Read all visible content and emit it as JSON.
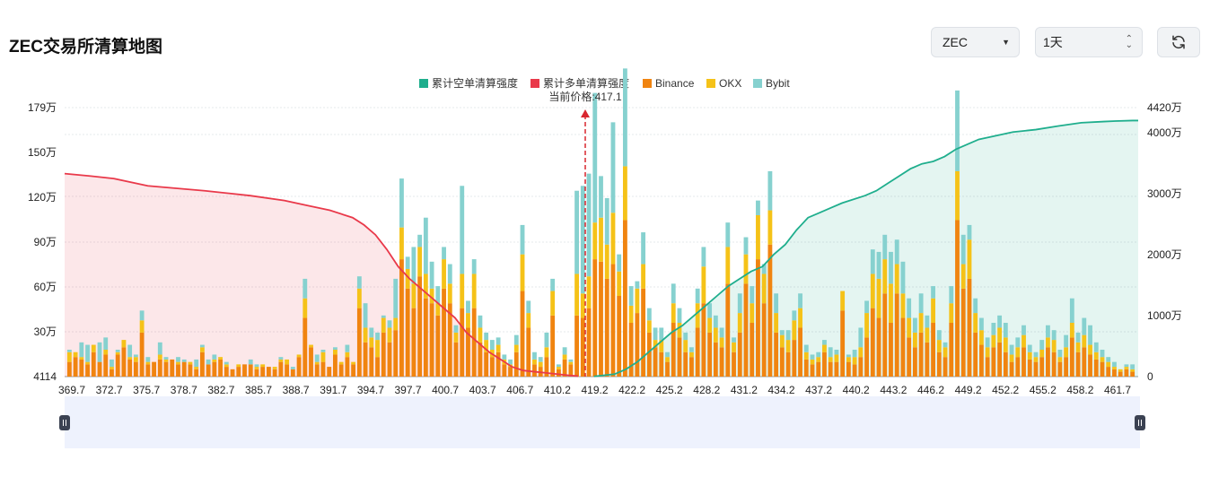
{
  "header": {
    "title": "ZEC交易所清算地图",
    "coin_select": "ZEC",
    "range_select": "1天"
  },
  "colors": {
    "short_cum": "#1fae8d",
    "long_cum": "#e9394a",
    "binance": "#f08410",
    "okx": "#f5c218",
    "bybit": "#86d1cf"
  },
  "chart_data": {
    "type": "bar",
    "legend": [
      "累计空单清算强度",
      "累计多单清算强度",
      "Binance",
      "OKX",
      "Bybit"
    ],
    "current_price_label": "当前价格:417.1",
    "current_price": 417.1,
    "x_range": [
      369.7,
      464.0
    ],
    "x_ticks": [
      "369.7",
      "372.7",
      "375.7",
      "378.7",
      "382.7",
      "385.7",
      "388.7",
      "391.7",
      "394.7",
      "397.7",
      "400.7",
      "403.7",
      "406.7",
      "410.2",
      "419.2",
      "422.2",
      "425.2",
      "428.2",
      "431.2",
      "434.2",
      "437.2",
      "440.2",
      "443.2",
      "446.2",
      "449.2",
      "452.2",
      "455.2",
      "458.2",
      "461.7"
    ],
    "left_axis": {
      "ticks": [
        "179万",
        "150万",
        "120万",
        "90万",
        "60万",
        "30万",
        "4114"
      ],
      "ylim": [
        4114,
        1790000
      ]
    },
    "right_axis": {
      "ticks": [
        "4420万",
        "4000万",
        "3000万",
        "2000万",
        "1000万",
        "0"
      ],
      "ylim": [
        0,
        44200000
      ]
    },
    "bars": [
      [
        6,
        4,
        1
      ],
      [
        8,
        2,
        0
      ],
      [
        7,
        1,
        6
      ],
      [
        5,
        1,
        7
      ],
      [
        10,
        3,
        0
      ],
      [
        6,
        0,
        8
      ],
      [
        9,
        2,
        5
      ],
      [
        3,
        1,
        3
      ],
      [
        9,
        1,
        1
      ],
      [
        12,
        3,
        0
      ],
      [
        7,
        1,
        5
      ],
      [
        6,
        2,
        1
      ],
      [
        18,
        5,
        4
      ],
      [
        5,
        1,
        2
      ],
      [
        6,
        0,
        0
      ],
      [
        7,
        2,
        5
      ],
      [
        6,
        1,
        1
      ],
      [
        7,
        0,
        0
      ],
      [
        5,
        1,
        2
      ],
      [
        6,
        0,
        1
      ],
      [
        5,
        1,
        0
      ],
      [
        3,
        1,
        3
      ],
      [
        10,
        2,
        1
      ],
      [
        5,
        0,
        2
      ],
      [
        6,
        1,
        2
      ],
      [
        7,
        1,
        0
      ],
      [
        4,
        1,
        1
      ],
      [
        3,
        0,
        0
      ],
      [
        4,
        1,
        0
      ],
      [
        5,
        0,
        0
      ],
      [
        5,
        0,
        2
      ],
      [
        3,
        1,
        1
      ],
      [
        4,
        1,
        0
      ],
      [
        4,
        0,
        0
      ],
      [
        3,
        1,
        0
      ],
      [
        6,
        1,
        1
      ],
      [
        5,
        2,
        0
      ],
      [
        3,
        0,
        1
      ],
      [
        8,
        1,
        0
      ],
      [
        24,
        8,
        8
      ],
      [
        12,
        1,
        0
      ],
      [
        5,
        1,
        3
      ],
      [
        6,
        4,
        1
      ],
      [
        4,
        0,
        0
      ],
      [
        9,
        2,
        1
      ],
      [
        5,
        1,
        0
      ],
      [
        8,
        2,
        3
      ],
      [
        5,
        1,
        0
      ],
      [
        28,
        8,
        5
      ],
      [
        14,
        6,
        10
      ],
      [
        12,
        4,
        4
      ],
      [
        8,
        7,
        3
      ],
      [
        18,
        6,
        1
      ],
      [
        14,
        6,
        3
      ],
      [
        19,
        5,
        16
      ],
      [
        48,
        13,
        20
      ],
      [
        36,
        8,
        5
      ],
      [
        28,
        10,
        15
      ],
      [
        41,
        12,
        5
      ],
      [
        32,
        10,
        23
      ],
      [
        30,
        6,
        11
      ],
      [
        25,
        5,
        7
      ],
      [
        36,
        12,
        5
      ],
      [
        30,
        8,
        8
      ],
      [
        14,
        4,
        3
      ],
      [
        28,
        14,
        36
      ],
      [
        20,
        6,
        5
      ],
      [
        28,
        14,
        6
      ],
      [
        14,
        6,
        5
      ],
      [
        10,
        5,
        3
      ],
      [
        8,
        3,
        4
      ],
      [
        10,
        3,
        3
      ],
      [
        5,
        2,
        2
      ],
      [
        4,
        1,
        2
      ],
      [
        10,
        3,
        4
      ],
      [
        35,
        15,
        12
      ],
      [
        20,
        6,
        5
      ],
      [
        5,
        2,
        3
      ],
      [
        4,
        2,
        2
      ],
      [
        8,
        4,
        6
      ],
      [
        25,
        10,
        5
      ],
      [
        3,
        1,
        1
      ],
      [
        7,
        2,
        3
      ],
      [
        5,
        1,
        1
      ],
      [
        25,
        17,
        34
      ],
      [
        24,
        10,
        44
      ],
      [
        28,
        13,
        42
      ],
      [
        48,
        15,
        53
      ],
      [
        47,
        18,
        17
      ],
      [
        40,
        14,
        19
      ],
      [
        46,
        21,
        37
      ],
      [
        33,
        10,
        7
      ],
      [
        64,
        22,
        40
      ],
      [
        22,
        7,
        8
      ],
      [
        26,
        10,
        3
      ],
      [
        36,
        10,
        13
      ],
      [
        18,
        5,
        5
      ],
      [
        12,
        3,
        5
      ],
      [
        10,
        5,
        5
      ],
      [
        6,
        2,
        2
      ],
      [
        22,
        8,
        8
      ],
      [
        16,
        6,
        6
      ],
      [
        10,
        5,
        3
      ],
      [
        8,
        2,
        2
      ],
      [
        20,
        10,
        6
      ],
      [
        30,
        15,
        8
      ],
      [
        18,
        6,
        6
      ],
      [
        14,
        6,
        5
      ],
      [
        12,
        4,
        4
      ],
      [
        38,
        15,
        10
      ],
      [
        10,
        4,
        2
      ],
      [
        18,
        8,
        8
      ],
      [
        38,
        12,
        7
      ],
      [
        22,
        8,
        7
      ],
      [
        48,
        18,
        6
      ],
      [
        30,
        12,
        4
      ],
      [
        54,
        14,
        16
      ],
      [
        18,
        8,
        8
      ],
      [
        12,
        5,
        2
      ],
      [
        10,
        5,
        4
      ],
      [
        15,
        8,
        4
      ],
      [
        20,
        8,
        6
      ],
      [
        7,
        3,
        3
      ],
      [
        5,
        2,
        2
      ],
      [
        6,
        2,
        2
      ],
      [
        10,
        3,
        2
      ],
      [
        6,
        2,
        4
      ],
      [
        6,
        3,
        2
      ],
      [
        27,
        8,
        0
      ],
      [
        6,
        2,
        1
      ],
      [
        5,
        3,
        3
      ],
      [
        8,
        4,
        8
      ],
      [
        16,
        10,
        5
      ],
      [
        28,
        14,
        10
      ],
      [
        24,
        16,
        11
      ],
      [
        34,
        14,
        10
      ],
      [
        22,
        16,
        13
      ],
      [
        34,
        12,
        10
      ],
      [
        24,
        10,
        13
      ],
      [
        16,
        8,
        8
      ],
      [
        12,
        6,
        6
      ],
      [
        18,
        8,
        8
      ],
      [
        14,
        6,
        5
      ],
      [
        22,
        10,
        5
      ],
      [
        10,
        5,
        4
      ],
      [
        8,
        4,
        2
      ],
      [
        22,
        8,
        7
      ],
      [
        64,
        20,
        33
      ],
      [
        36,
        10,
        12
      ],
      [
        40,
        16,
        6
      ],
      [
        18,
        8,
        6
      ],
      [
        13,
        6,
        5
      ],
      [
        8,
        4,
        4
      ],
      [
        12,
        5,
        5
      ],
      [
        14,
        6,
        5
      ],
      [
        10,
        6,
        6
      ],
      [
        6,
        3,
        4
      ],
      [
        8,
        4,
        4
      ],
      [
        12,
        5,
        4
      ],
      [
        7,
        3,
        3
      ],
      [
        6,
        2,
        2
      ],
      [
        8,
        3,
        4
      ],
      [
        12,
        4,
        5
      ],
      [
        10,
        5,
        4
      ],
      [
        6,
        2,
        3
      ],
      [
        8,
        4,
        5
      ],
      [
        16,
        6,
        10
      ],
      [
        10,
        4,
        4
      ],
      [
        12,
        5,
        7
      ],
      [
        9,
        4,
        8
      ],
      [
        7,
        3,
        4
      ],
      [
        6,
        2,
        3
      ],
      [
        4,
        2,
        2
      ],
      [
        3,
        1,
        2
      ],
      [
        2,
        1,
        0
      ],
      [
        3,
        1,
        1
      ],
      [
        2,
        1,
        2
      ]
    ],
    "long_curve": [
      [
        369.7,
        83
      ],
      [
        372,
        82
      ],
      [
        374,
        81
      ],
      [
        377,
        78
      ],
      [
        382,
        76
      ],
      [
        386,
        74
      ],
      [
        389,
        72
      ],
      [
        391,
        70
      ],
      [
        393,
        68
      ],
      [
        395,
        65
      ],
      [
        396,
        62
      ],
      [
        397,
        58
      ],
      [
        398,
        52
      ],
      [
        399,
        45
      ],
      [
        400,
        40
      ],
      [
        401,
        36
      ],
      [
        402,
        32
      ],
      [
        403,
        28
      ],
      [
        404,
        24
      ],
      [
        405,
        18
      ],
      [
        406,
        14
      ],
      [
        407,
        10
      ],
      [
        408,
        7
      ],
      [
        409,
        4
      ],
      [
        410,
        2.5
      ],
      [
        411,
        2.0
      ],
      [
        412,
        1.5
      ],
      [
        413,
        1.0
      ],
      [
        414,
        0.5
      ],
      [
        414.8,
        0.2
      ]
    ],
    "short_curve": [
      [
        416.2,
        0.1
      ],
      [
        418,
        1
      ],
      [
        419,
        3
      ],
      [
        420,
        6
      ],
      [
        421,
        10
      ],
      [
        422,
        14
      ],
      [
        423,
        18
      ],
      [
        424,
        21
      ],
      [
        425,
        25
      ],
      [
        426,
        29
      ],
      [
        427,
        33
      ],
      [
        428,
        37
      ],
      [
        429,
        40
      ],
      [
        430,
        43
      ],
      [
        431,
        45
      ],
      [
        432,
        50
      ],
      [
        433,
        54
      ],
      [
        434,
        60
      ],
      [
        435,
        65
      ],
      [
        436,
        67
      ],
      [
        437,
        69
      ],
      [
        438,
        71
      ],
      [
        440,
        74
      ],
      [
        441,
        76
      ],
      [
        442,
        79
      ],
      [
        443,
        82
      ],
      [
        444,
        85
      ],
      [
        445,
        87
      ],
      [
        446,
        88
      ],
      [
        447,
        90
      ],
      [
        448,
        93
      ],
      [
        449,
        95
      ],
      [
        450,
        97
      ],
      [
        451,
        98
      ],
      [
        452,
        99
      ],
      [
        453,
        100
      ],
      [
        455,
        101
      ],
      [
        457,
        102.5
      ],
      [
        459,
        103.8
      ],
      [
        461,
        104.3
      ],
      [
        462,
        104.5
      ],
      [
        463.5,
        104.7
      ]
    ],
    "cum_units": "万"
  }
}
